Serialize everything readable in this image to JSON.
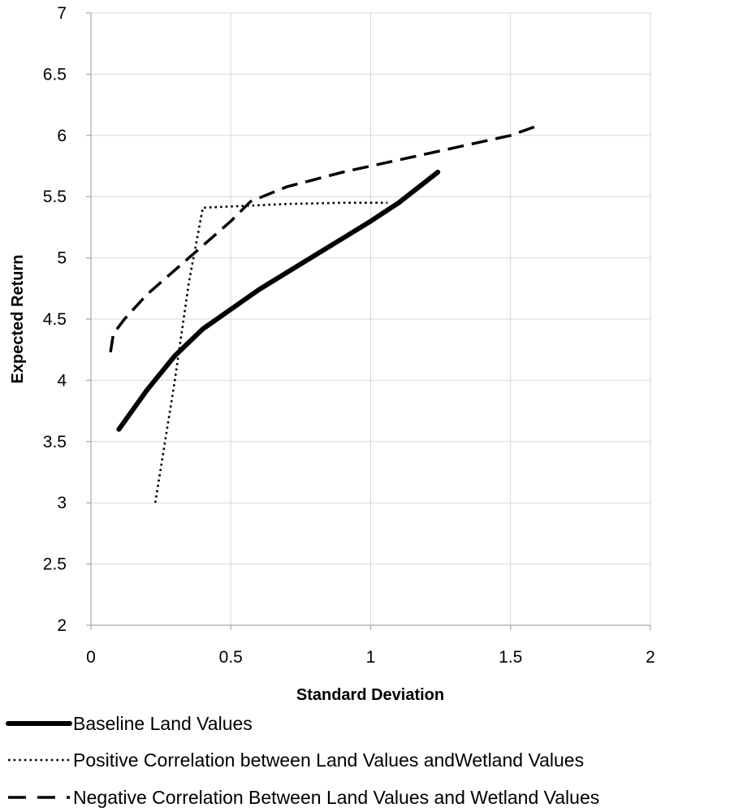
{
  "chart_data": {
    "type": "line",
    "title": "",
    "xlabel": "Standard Deviation",
    "ylabel": "Expected Return",
    "xlim": [
      0,
      2
    ],
    "ylim": [
      2,
      7
    ],
    "xticks": [
      0,
      0.5,
      1,
      1.5,
      2
    ],
    "yticks": [
      2,
      2.5,
      3,
      3.5,
      4,
      4.5,
      5,
      5.5,
      6,
      6.5,
      7
    ],
    "xtick_labels": [
      "0",
      "0.5",
      "1",
      "1.5",
      "2"
    ],
    "ytick_labels": [
      "2",
      "2.5",
      "3",
      "3.5",
      "4",
      "4.5",
      "5",
      "5.5",
      "6",
      "6.5",
      "7"
    ],
    "grid": "vertical",
    "legend_position": "bottom",
    "series": [
      {
        "name": "Baseline Land Values",
        "style": "solid",
        "color": "#000000",
        "points": [
          [
            0.1,
            3.6
          ],
          [
            0.2,
            3.92
          ],
          [
            0.3,
            4.2
          ],
          [
            0.4,
            4.42
          ],
          [
            0.5,
            4.58
          ],
          [
            0.6,
            4.74
          ],
          [
            0.7,
            4.88
          ],
          [
            0.8,
            5.02
          ],
          [
            0.9,
            5.16
          ],
          [
            1.0,
            5.3
          ],
          [
            1.1,
            5.45
          ],
          [
            1.24,
            5.7
          ]
        ]
      },
      {
        "name": "Positive Correlation between Land Values andWetland Values",
        "style": "dotted",
        "color": "#000000",
        "points": [
          [
            0.23,
            3.0
          ],
          [
            0.3,
            4.0
          ],
          [
            0.35,
            4.8
          ],
          [
            0.4,
            5.41
          ],
          [
            0.5,
            5.42
          ],
          [
            0.7,
            5.44
          ],
          [
            0.9,
            5.45
          ],
          [
            1.06,
            5.45
          ]
        ]
      },
      {
        "name": "Negative Correlation Between Land Values and Wetland Values",
        "style": "dashed",
        "color": "#000000",
        "points": [
          [
            0.07,
            4.23
          ],
          [
            0.08,
            4.38
          ],
          [
            0.12,
            4.5
          ],
          [
            0.2,
            4.7
          ],
          [
            0.3,
            4.9
          ],
          [
            0.4,
            5.1
          ],
          [
            0.5,
            5.3
          ],
          [
            0.57,
            5.46
          ],
          [
            0.7,
            5.58
          ],
          [
            0.9,
            5.7
          ],
          [
            1.1,
            5.8
          ],
          [
            1.3,
            5.9
          ],
          [
            1.5,
            6.0
          ],
          [
            1.61,
            6.09
          ]
        ]
      }
    ]
  }
}
